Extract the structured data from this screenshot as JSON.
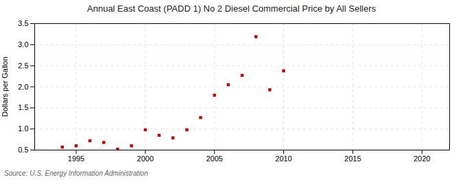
{
  "chart_data": {
    "type": "scatter",
    "title": "Annual East Coast (PADD 1) No 2 Diesel Commercial Price by All Sellers",
    "ylabel": "Dollars per Gallon",
    "source": "Source: U.S. Energy Information Administration",
    "x": [
      1994,
      1995,
      1996,
      1997,
      1998,
      1999,
      2000,
      2001,
      2002,
      2003,
      2004,
      2005,
      2006,
      2007,
      2008,
      2009,
      2010
    ],
    "values": [
      0.57,
      0.6,
      0.72,
      0.68,
      0.52,
      0.6,
      0.98,
      0.85,
      0.79,
      0.98,
      1.27,
      1.8,
      2.05,
      2.27,
      3.19,
      1.93,
      2.38
    ],
    "color": "#cc0000",
    "marker": "square",
    "xlim": [
      1992,
      2022
    ],
    "xticks": [
      1995,
      2000,
      2005,
      2010,
      2015,
      2020
    ],
    "ylim": [
      0.5,
      3.5
    ],
    "yticks": [
      0.5,
      {
        "value": 1.0,
        "label": "1.0"
      },
      1.5,
      {
        "value": 2.0,
        "label": "2.0"
      },
      2.5,
      {
        "value": 3.0,
        "label": "3.0"
      },
      3.5
    ],
    "grid": true
  }
}
